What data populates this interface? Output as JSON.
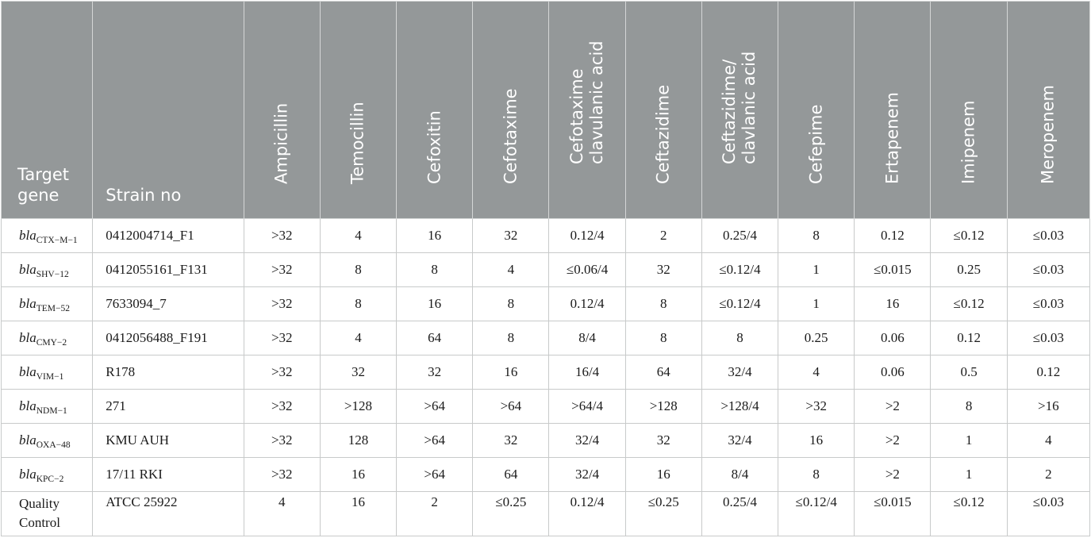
{
  "header": {
    "target_gene": "Target gene",
    "strain_no": "Strain no",
    "ampicillin": "Ampicillin",
    "temocillin": "Temocillin",
    "cefoxitin": "Cefoxitin",
    "cefotaxime": "Cefotaxime",
    "cefotaxime_clav_line1": "Cefotaxime",
    "cefotaxime_clav_line2": "clavulanic acid",
    "ceftazidime": "Ceftazidime",
    "ceftazidime_clav_line1": "Ceftazidime/",
    "ceftazidime_clav_line2": "clavlanic acid",
    "cefepime": "Cefepime",
    "ertapenem": "Ertapenem",
    "imipenem": "Imipenem",
    "meropenem": "Meropenem"
  },
  "rows": [
    {
      "gene": "bla",
      "sub": "CTX−M−1",
      "strain": "0412004714_F1",
      "v": [
        ">32",
        "4",
        "16",
        "32",
        "0.12/4",
        "2",
        "0.25/4",
        "8",
        "0.12",
        "≤0.12",
        "≤0.03"
      ]
    },
    {
      "gene": "bla",
      "sub": "SHV−12",
      "strain": "0412055161_F131",
      "v": [
        ">32",
        "8",
        "8",
        "4",
        "≤0.06/4",
        "32",
        "≤0.12/4",
        "1",
        "≤0.015",
        "0.25",
        "≤0.03"
      ]
    },
    {
      "gene": "bla",
      "sub": "TEM−52",
      "strain": "7633094_7",
      "v": [
        ">32",
        "8",
        "16",
        "8",
        "0.12/4",
        "8",
        "≤0.12/4",
        "1",
        "16",
        "≤0.12",
        "≤0.03"
      ]
    },
    {
      "gene": "bla",
      "sub": "CMY−2",
      "strain": "0412056488_F191",
      "v": [
        ">32",
        "4",
        "64",
        "8",
        "8/4",
        "8",
        "8",
        "0.25",
        "0.06",
        "0.12",
        "≤0.03"
      ]
    },
    {
      "gene": "bla",
      "sub": "VIM−1",
      "strain": "R178",
      "v": [
        ">32",
        "32",
        "32",
        "16",
        "16/4",
        "64",
        "32/4",
        "4",
        "0.06",
        "0.5",
        "0.12"
      ]
    },
    {
      "gene": "bla",
      "sub": "NDM−1",
      "strain": "271",
      "v": [
        ">32",
        ">128",
        ">64",
        ">64",
        ">64/4",
        ">128",
        ">128/4",
        ">32",
        ">2",
        "8",
        ">16"
      ]
    },
    {
      "gene": "bla",
      "sub": "OXA−48",
      "strain": "KMU AUH",
      "v": [
        ">32",
        "128",
        ">64",
        "32",
        "32/4",
        "32",
        "32/4",
        "16",
        ">2",
        "1",
        "4"
      ]
    },
    {
      "gene": "bla",
      "sub": "KPC−2",
      "strain": "17/11 RKI",
      "v": [
        ">32",
        "16",
        ">64",
        "64",
        "32/4",
        "16",
        "8/4",
        "8",
        ">2",
        "1",
        "2"
      ]
    }
  ],
  "qc": {
    "label_line1": "Quality",
    "label_line2": "Control",
    "strain": "ATCC 25922",
    "v": [
      "4",
      "16",
      "2",
      "≤0.25",
      "0.12/4",
      "≤0.25",
      "0.25/4",
      "≤0.12/4",
      "≤0.015",
      "≤0.12",
      "≤0.03"
    ]
  }
}
